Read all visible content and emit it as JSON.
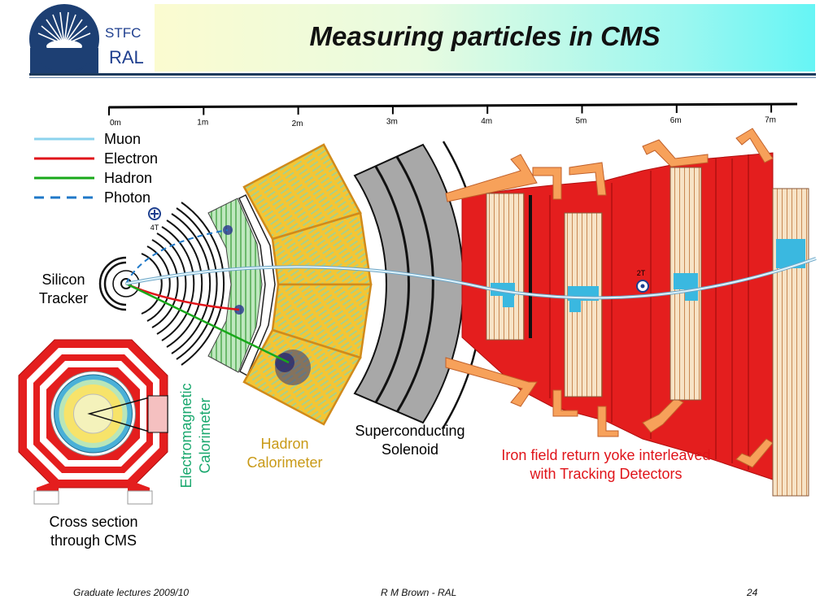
{
  "logo": {
    "line1": "STFC",
    "line2": "RAL"
  },
  "title": "Measuring particles in CMS",
  "scale": {
    "ticks": [
      "0m",
      "1m",
      "2m",
      "3m",
      "4m",
      "5m",
      "6m",
      "7m"
    ]
  },
  "legend": [
    {
      "label": "Muon",
      "color": "#8cd3ee",
      "style": "solid"
    },
    {
      "label": "Electron",
      "color": "#e0141a",
      "style": "solid"
    },
    {
      "label": "Hadron",
      "color": "#18a81a",
      "style": "solid"
    },
    {
      "label": "Photon",
      "color": "#1f78c8",
      "style": "dashed"
    }
  ],
  "field_labels": {
    "inner": "4T",
    "outer": "2T"
  },
  "labels": {
    "silicon_tracker": [
      "Silicon",
      "Tracker"
    ],
    "ecal": [
      "Electromagnetic",
      "Calorimeter"
    ],
    "hcal": [
      "Hadron",
      "Calorimeter"
    ],
    "solenoid": [
      "Superconducting",
      "Solenoid"
    ],
    "yoke": [
      "Iron field return yoke interleaved",
      "with Tracking Detectors"
    ],
    "cross_section": [
      "Cross section",
      "through CMS"
    ]
  },
  "colors": {
    "ecal_text": "#1aa86e",
    "hcal_text": "#c99a18",
    "yoke_text": "#e0141a"
  },
  "footer": {
    "left": "Graduate lectures 2009/10",
    "center": "R M Brown - RAL",
    "page": "24"
  }
}
